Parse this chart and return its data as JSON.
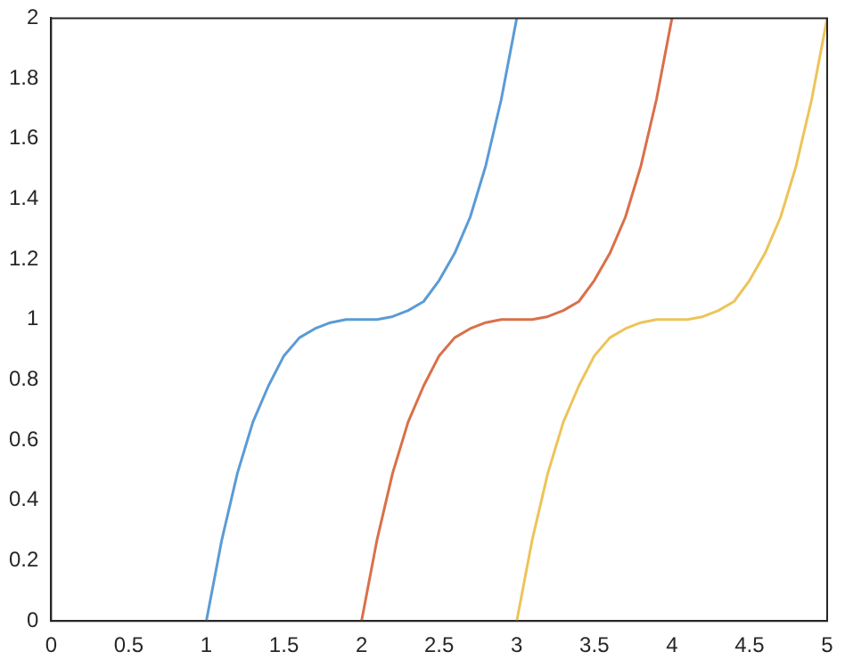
{
  "chart_data": {
    "type": "line",
    "xlim": [
      0,
      5
    ],
    "xticks": [
      0,
      0.5,
      1,
      1.5,
      2,
      2.5,
      3,
      3.5,
      4,
      4.5,
      5
    ],
    "ylim": [
      0,
      2
    ],
    "yticks": [
      0,
      0.2,
      0.4,
      0.6,
      0.8,
      1,
      1.2,
      1.4,
      1.6,
      1.8,
      2
    ],
    "grid": false,
    "legend": false,
    "marker": "none",
    "line_style": "solid",
    "series": [
      {
        "color": "#5b9bd5",
        "x": [
          1,
          1.1,
          1.2,
          1.3,
          1.4,
          1.5,
          1.6,
          1.7,
          1.8,
          1.9,
          2,
          2.1,
          2.2,
          2.3,
          2.4,
          2.5,
          2.6,
          2.7,
          2.8,
          2.9,
          3
        ],
        "values": [
          0,
          0.27,
          0.49,
          0.66,
          0.78,
          0.88,
          0.94,
          0.97,
          0.99,
          1,
          1,
          1,
          1.01,
          1.03,
          1.06,
          1.13,
          1.22,
          1.34,
          1.51,
          1.73,
          2
        ]
      },
      {
        "color": "#d9704a",
        "x": [
          2,
          2.1,
          2.2,
          2.3,
          2.4,
          2.5,
          2.6,
          2.7,
          2.8,
          2.9,
          3,
          3.1,
          3.2,
          3.3,
          3.4,
          3.5,
          3.6,
          3.7,
          3.8,
          3.9,
          4
        ],
        "values": [
          0,
          0.27,
          0.49,
          0.66,
          0.78,
          0.88,
          0.94,
          0.97,
          0.99,
          1,
          1,
          1,
          1.01,
          1.03,
          1.06,
          1.13,
          1.22,
          1.34,
          1.51,
          1.73,
          2
        ]
      },
      {
        "color": "#edc45a",
        "x": [
          3,
          3.1,
          3.2,
          3.3,
          3.4,
          3.5,
          3.6,
          3.7,
          3.8,
          3.9,
          4,
          4.1,
          4.2,
          4.3,
          4.4,
          4.5,
          4.6,
          4.7,
          4.8,
          4.9,
          5
        ],
        "values": [
          0,
          0.27,
          0.49,
          0.66,
          0.78,
          0.88,
          0.94,
          0.97,
          0.99,
          1,
          1,
          1,
          1.01,
          1.03,
          1.06,
          1.13,
          1.22,
          1.34,
          1.51,
          1.73,
          2
        ]
      }
    ]
  }
}
